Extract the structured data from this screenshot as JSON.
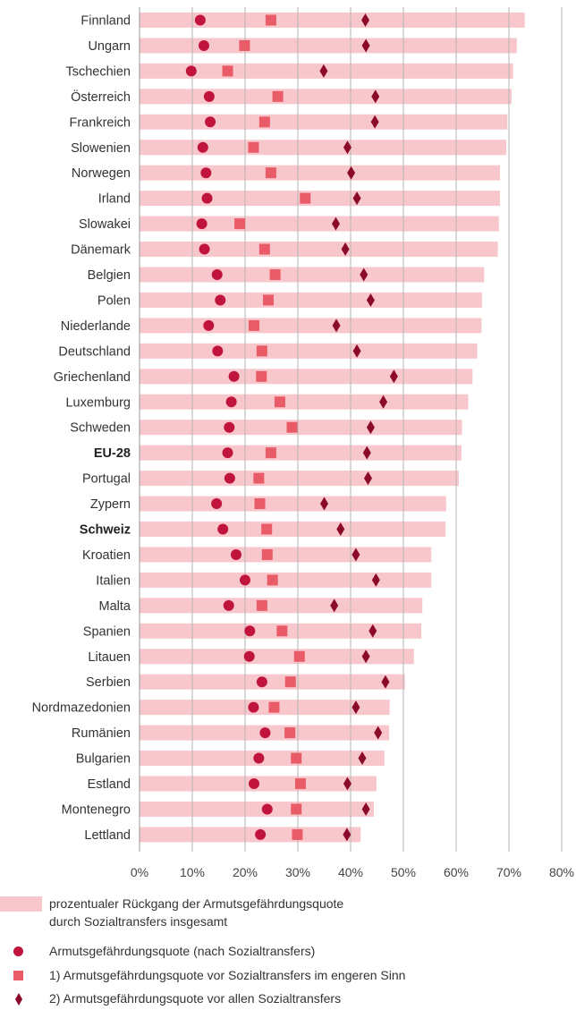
{
  "chart_data": {
    "type": "bar",
    "categories": [
      "Finnland",
      "Ungarn",
      "Tschechien",
      "Österreich",
      "Frankreich",
      "Slowenien",
      "Norwegen",
      "Irland",
      "Slowakei",
      "Dänemark",
      "Belgien",
      "Polen",
      "Niederlande",
      "Deutschland",
      "Griechenland",
      "Luxemburg",
      "Schweden",
      "EU-28",
      "Portugal",
      "Zypern",
      "Schweiz",
      "Kroatien",
      "Italien",
      "Malta",
      "Spanien",
      "Litauen",
      "Serbien",
      "Nordmazedonien",
      "Rumänien",
      "Bulgarien",
      "Estland",
      "Montenegro",
      "Lettland"
    ],
    "highlighted": [
      "EU-28",
      "Schweiz"
    ],
    "series": [
      {
        "name": "prozentualer Rückgang der Armutsgefährdungsquote durch Sozialtransfers insgesamt",
        "mark": "bar",
        "color": "#f8c7cc",
        "values": [
          73,
          71.5,
          70.8,
          70.5,
          69.7,
          69.5,
          68.3,
          68.3,
          68.1,
          67.9,
          65.3,
          64.9,
          64.8,
          64,
          63.1,
          62.3,
          61.1,
          61,
          60.5,
          58.1,
          58,
          55.3,
          55.3,
          53.6,
          53.4,
          52,
          50.3,
          47.4,
          47.3,
          46.4,
          44.9,
          44.4,
          41.9
        ]
      },
      {
        "name": "Armutsgefährdungsquote (nach Sozialtransfers)",
        "mark": "circle",
        "color": "#c0143c",
        "values": [
          11.5,
          12.2,
          9.8,
          13.2,
          13.4,
          12,
          12.6,
          12.8,
          11.8,
          12.3,
          14.7,
          15.3,
          13.1,
          14.8,
          17.9,
          17.4,
          17,
          16.7,
          17.1,
          14.6,
          15.8,
          18.3,
          20,
          16.9,
          20.9,
          20.8,
          23.2,
          21.6,
          23.8,
          22.6,
          21.7,
          24.2,
          22.9
        ]
      },
      {
        "name": "1) Armutsgefährdungsquote vor Sozialtransfers im engeren Sinn",
        "mark": "square",
        "color": "#ea5b68",
        "values": [
          24.9,
          19.9,
          16.7,
          26.2,
          23.7,
          21.6,
          24.9,
          31.4,
          19,
          23.7,
          25.7,
          24.4,
          21.7,
          23.2,
          23.1,
          26.6,
          28.9,
          24.9,
          22.6,
          22.8,
          24.1,
          24.2,
          25.2,
          23.2,
          27,
          30.3,
          28.6,
          25.5,
          28.5,
          29.7,
          30.5,
          29.7,
          29.9
        ]
      },
      {
        "name": "2) Armutsgefährdungsquote vor allen Sozialtransfers",
        "mark": "diamond",
        "color": "#8b0a2b",
        "values": [
          42.8,
          42.9,
          34.9,
          44.7,
          44.6,
          39.4,
          40.1,
          41.2,
          37.2,
          39,
          42.5,
          43.8,
          37.3,
          41.2,
          48.2,
          46.2,
          43.8,
          43.1,
          43.3,
          35,
          38.1,
          41,
          44.8,
          36.9,
          44.2,
          42.9,
          46.6,
          41,
          45.2,
          42.2,
          39.4,
          42.9,
          39.3
        ]
      }
    ],
    "x_ticks": [
      "0%",
      "10%",
      "20%",
      "30%",
      "40%",
      "50%",
      "60%",
      "70%",
      "80%"
    ],
    "xlim": [
      0,
      80
    ],
    "grid": true,
    "legend_position": "bottom"
  },
  "legend": {
    "items": [
      {
        "symbol": "bar",
        "lines": [
          "prozentualer Rückgang der Armutsgefährdungsquote",
          "durch Sozialtransfers insgesamt"
        ]
      },
      {
        "symbol": "circle",
        "lines": [
          "Armutsgefährdungsquote (nach Sozialtransfers)"
        ]
      },
      {
        "symbol": "square",
        "lines": [
          "1) Armutsgefährdungsquote vor Sozialtransfers im engeren Sinn"
        ]
      },
      {
        "symbol": "diamond",
        "lines": [
          "2) Armutsgefährdungsquote vor allen Sozialtransfers"
        ]
      }
    ]
  }
}
